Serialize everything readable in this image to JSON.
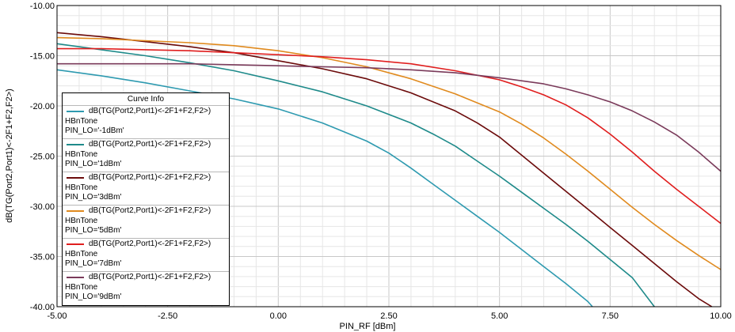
{
  "chart_data": {
    "type": "line",
    "xlabel": "PIN_RF [dBm]",
    "ylabel": "dB(TG(Port2,Port1)<-2F1+F2,F2>)",
    "xlim": [
      -5,
      10
    ],
    "ylim": [
      -40,
      -10
    ],
    "x_ticks": [
      "-5.00",
      "-2.50",
      "0.00",
      "2.50",
      "5.00",
      "7.50",
      "10.00"
    ],
    "y_ticks": [
      "-10.00",
      "-15.00",
      "-20.00",
      "-25.00",
      "-30.00",
      "-35.00",
      "-40.00"
    ],
    "grid": true,
    "legend": {
      "title": "Curve Info",
      "placement": "bottom-left",
      "entries": [
        {
          "expr": "dB(TG(Port2,Port1)<-2F1+F2,F2>)",
          "setup": "HBnTone",
          "param": "PIN_LO='-1dBm'"
        },
        {
          "expr": "dB(TG(Port2,Port1)<-2F1+F2,F2>)",
          "setup": "HBnTone",
          "param": "PIN_LO='1dBm'"
        },
        {
          "expr": "dB(TG(Port2,Port1)<-2F1+F2,F2>)",
          "setup": "HBnTone",
          "param": "PIN_LO='3dBm'"
        },
        {
          "expr": "dB(TG(Port2,Port1)<-2F1+F2,F2>)",
          "setup": "HBnTone",
          "param": "PIN_LO='5dBm'"
        },
        {
          "expr": "dB(TG(Port2,Port1)<-2F1+F2,F2>)",
          "setup": "HBnTone",
          "param": "PIN_LO='7dBm'"
        },
        {
          "expr": "dB(TG(Port2,Port1)<-2F1+F2,F2>)",
          "setup": "HBnTone",
          "param": "PIN_LO='9dBm'"
        }
      ]
    },
    "series": [
      {
        "color": "#2e9ab0",
        "x": [
          -5,
          -4,
          -3,
          -2,
          -1,
          0,
          1,
          2,
          2.5,
          3,
          3.5,
          4,
          4.5,
          5,
          5.5,
          6,
          6.5,
          7,
          7.1
        ],
        "y": [
          -16.4,
          -17.0,
          -17.7,
          -18.5,
          -19.3,
          -20.3,
          -21.7,
          -23.5,
          -24.7,
          -26.2,
          -27.8,
          -29.4,
          -31.0,
          -32.6,
          -34.3,
          -36.0,
          -37.7,
          -39.5,
          -40.0
        ]
      },
      {
        "color": "#1e8a8a",
        "x": [
          -5,
          -4,
          -3,
          -2,
          -1,
          0,
          1,
          2,
          3,
          3.5,
          4,
          4.5,
          5,
          5.5,
          6,
          6.5,
          7,
          7.5,
          8,
          8.5
        ],
        "y": [
          -13.8,
          -14.4,
          -15.0,
          -15.7,
          -16.5,
          -17.5,
          -18.6,
          -20.0,
          -21.7,
          -22.8,
          -24.0,
          -25.5,
          -27.0,
          -28.6,
          -30.2,
          -31.8,
          -33.5,
          -35.3,
          -37.1,
          -40.0
        ]
      },
      {
        "color": "#6b0a0a",
        "x": [
          -5,
          -4,
          -3,
          -2,
          -1,
          0,
          1,
          2,
          3,
          4,
          4.5,
          5,
          5.5,
          6,
          6.5,
          7,
          7.5,
          8,
          8.5,
          9,
          9.5,
          9.8
        ],
        "y": [
          -12.7,
          -13.1,
          -13.6,
          -14.1,
          -14.7,
          -15.5,
          -16.3,
          -17.3,
          -18.7,
          -20.5,
          -21.7,
          -23.1,
          -24.9,
          -26.7,
          -28.5,
          -30.3,
          -32.1,
          -33.9,
          -35.7,
          -37.5,
          -39.2,
          -40.0
        ]
      },
      {
        "color": "#e08a1e",
        "x": [
          -5,
          -4,
          -3,
          -2,
          -1,
          0,
          1,
          2,
          3,
          4,
          5,
          5.5,
          6,
          6.5,
          7,
          7.5,
          8,
          8.5,
          9,
          9.5,
          10
        ],
        "y": [
          -13.2,
          -13.3,
          -13.5,
          -13.7,
          -14.0,
          -14.5,
          -15.2,
          -16.1,
          -17.3,
          -18.8,
          -20.6,
          -21.8,
          -23.2,
          -24.8,
          -26.5,
          -28.3,
          -30.1,
          -31.8,
          -33.4,
          -34.9,
          -36.3
        ]
      },
      {
        "color": "#e01e1e",
        "x": [
          -5,
          -4,
          -3,
          -2,
          -1,
          0,
          1,
          2,
          3,
          4,
          5,
          5.5,
          6,
          6.5,
          7,
          7.5,
          8,
          8.5,
          9,
          9.5,
          10
        ],
        "y": [
          -14.3,
          -14.3,
          -14.4,
          -14.5,
          -14.7,
          -14.9,
          -15.1,
          -15.4,
          -15.8,
          -16.5,
          -17.4,
          -18.1,
          -18.9,
          -19.9,
          -21.2,
          -22.8,
          -24.6,
          -26.5,
          -28.3,
          -30.0,
          -31.7
        ]
      },
      {
        "color": "#7a3a5a",
        "x": [
          -5,
          -4,
          -3,
          -2,
          -1,
          0,
          1,
          2,
          3,
          4,
          5,
          6,
          6.5,
          7,
          7.5,
          8,
          8.5,
          9,
          9.5,
          10
        ],
        "y": [
          -15.8,
          -15.8,
          -15.8,
          -15.8,
          -15.9,
          -16.0,
          -16.1,
          -16.2,
          -16.4,
          -16.7,
          -17.2,
          -17.8,
          -18.3,
          -18.9,
          -19.6,
          -20.5,
          -21.6,
          -22.9,
          -24.6,
          -26.5
        ]
      }
    ]
  }
}
